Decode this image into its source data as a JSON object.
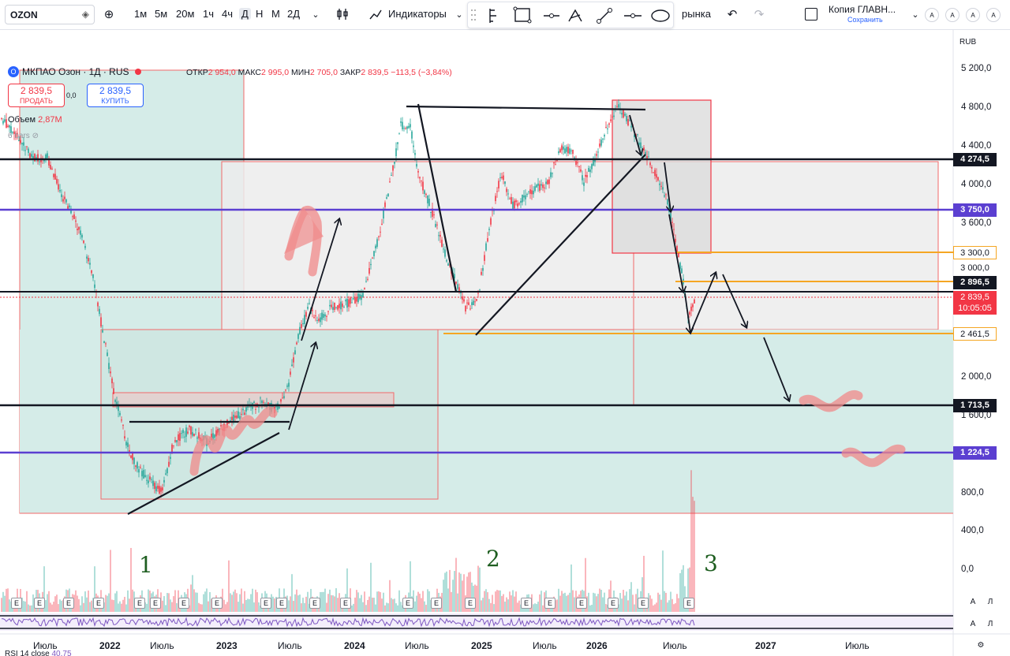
{
  "toolbar": {
    "symbol": "OZON",
    "intervals": [
      "1м",
      "5м",
      "20м",
      "1ч",
      "4ч",
      "Д",
      "Н",
      "М",
      "2Д"
    ],
    "active_interval": "Д",
    "indicators_label": "Индикаторы",
    "partial_label": "рынка",
    "layout_name": "Копия ГЛАВН...",
    "save_label": "Сохранить",
    "circle_buttons": [
      "A",
      "A",
      "A",
      "A"
    ]
  },
  "legend": {
    "title": "МКПАО Озон · 1Д · RUS",
    "open_label": "ОТКР",
    "open": "2 954,0",
    "high_label": "МАКС",
    "high": "2 995,0",
    "low_label": "МИН",
    "low": "2 705,0",
    "close_label": "ЗАКР",
    "close": "2 839,5",
    "change": "−113,5 (−3,84%)",
    "sell_price": "2 839,5",
    "sell_label": "ПРОДАТЬ",
    "buy_price": "2 839,5",
    "buy_label": "КУПИТЬ",
    "spread": "0,0",
    "volume_label": "Объем",
    "volume": "2,87M",
    "bars_label": "6 bars",
    "rsi_label": "RSI 14 close",
    "rsi_value": "40,75"
  },
  "price_axis": {
    "currency": "RUB",
    "ticks": [
      "5 200,0",
      "4 800,0",
      "4 400,0",
      "4 000,0",
      "3 600,0",
      "2 000,0",
      "1 600,0",
      "800,0",
      "400,0",
      "0,0"
    ],
    "tags": {
      "level_4274": "4 274,5",
      "level_3750": "3 750,0",
      "level_3300": "3 300,0",
      "level_3000": "3 000,0",
      "level_2896": "2 896,5",
      "last_price": "2 839,5",
      "countdown": "10:05:05",
      "level_2461": "2 461,5",
      "level_1713": "1 713,5",
      "level_1224": "1 224,5"
    }
  },
  "time_axis": {
    "labels": [
      "Июль",
      "2022",
      "Июль",
      "2023",
      "Июль",
      "2024",
      "Июль",
      "2025",
      "Июль",
      "2026",
      "Июль",
      "2027",
      "Июль"
    ]
  },
  "annotations": {
    "wave1": "1",
    "wave2": "2",
    "wave3": "3"
  },
  "earnings_mark": "E",
  "corner_buttons": [
    "A",
    "Л",
    "A",
    "Л"
  ],
  "colors": {
    "up": "#26a69a",
    "down": "#f23645",
    "purple_level": "#5b3fd1",
    "orange_level": "#f5a623",
    "zone_fill": "#cfe9e4",
    "gray_zone": "#e6e6e6",
    "handdrawn": "#f08a8a"
  }
}
